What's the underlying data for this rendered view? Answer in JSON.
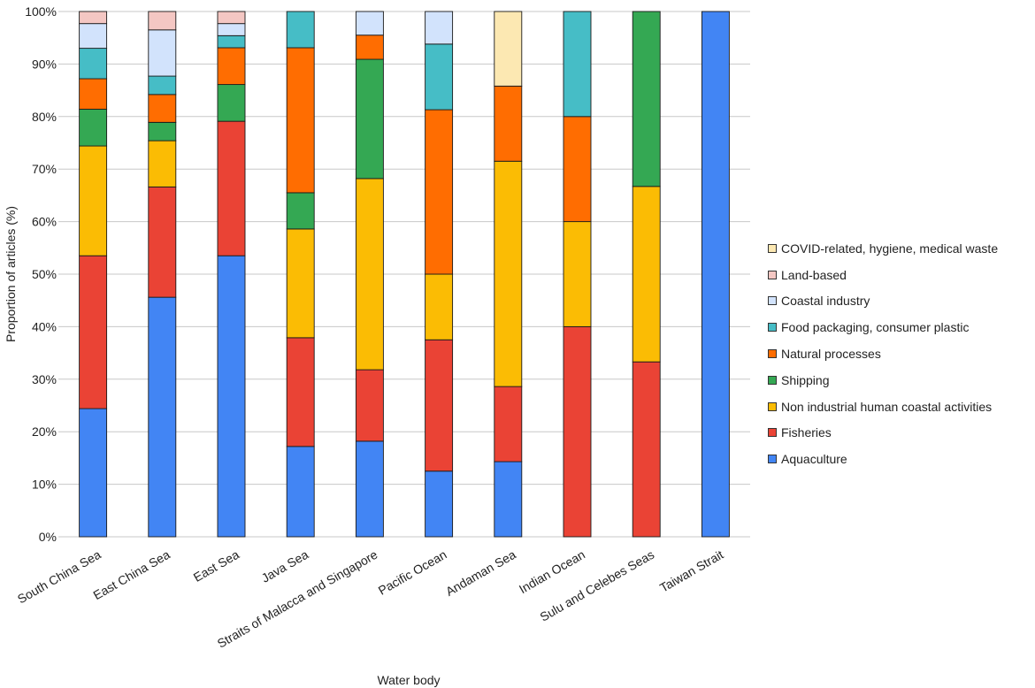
{
  "chart_data": {
    "type": "stacked-bar",
    "xlabel": "Water body",
    "ylabel": "Proportion of articles (%)",
    "ylim": [
      0,
      100
    ],
    "yticks": [
      "0%",
      "10%",
      "20%",
      "30%",
      "40%",
      "50%",
      "60%",
      "70%",
      "80%",
      "90%",
      "100%"
    ],
    "grid": true,
    "legend_position": "right",
    "categories": [
      "South China Sea",
      "East China Sea",
      "East Sea",
      "Java Sea",
      "Straits of Malacca and Singapore",
      "Pacific Ocean",
      "Andaman Sea",
      "Indian Ocean",
      "Sulu and Celebes Seas",
      "Taiwan Strait"
    ],
    "series": [
      {
        "name": "Aquaculture",
        "color": "#4285F4",
        "values": [
          24.4,
          45.6,
          53.5,
          17.2,
          18.2,
          12.5,
          14.3,
          0,
          0,
          100
        ]
      },
      {
        "name": "Fisheries",
        "color": "#EA4335",
        "values": [
          29.1,
          21.0,
          25.6,
          20.7,
          13.6,
          25.0,
          14.3,
          40.0,
          33.3,
          0
        ]
      },
      {
        "name": "Non industrial human coastal activities",
        "color": "#FBBC04",
        "values": [
          20.9,
          8.8,
          0,
          20.7,
          36.4,
          12.5,
          42.9,
          20.0,
          33.4,
          0
        ]
      },
      {
        "name": "Shipping",
        "color": "#34A853",
        "values": [
          7.0,
          3.5,
          7.0,
          6.9,
          22.7,
          0,
          0,
          0,
          33.3,
          0
        ]
      },
      {
        "name": "Natural processes",
        "color": "#FF6D01",
        "values": [
          5.8,
          5.3,
          7.0,
          27.6,
          4.6,
          31.3,
          14.3,
          20.0,
          0,
          0
        ]
      },
      {
        "name": "Food packaging, consumer plastic",
        "color": "#46BDC6",
        "values": [
          5.8,
          3.5,
          2.3,
          6.9,
          0,
          12.5,
          0,
          20.0,
          0,
          0
        ]
      },
      {
        "name": "Coastal industry",
        "color": "#D2E3FC",
        "values": [
          4.7,
          8.8,
          2.3,
          0,
          4.5,
          6.2,
          0,
          0,
          0,
          0
        ]
      },
      {
        "name": "Land-based",
        "color": "#F4C7C3",
        "values": [
          2.3,
          3.5,
          2.3,
          0,
          0,
          0,
          0,
          0,
          0,
          0
        ]
      },
      {
        "name": "COVID-related, hygiene, medical waste",
        "color": "#FCE8B2",
        "values": [
          0,
          0,
          0,
          0,
          0,
          0,
          14.2,
          0,
          0,
          0
        ]
      }
    ]
  }
}
